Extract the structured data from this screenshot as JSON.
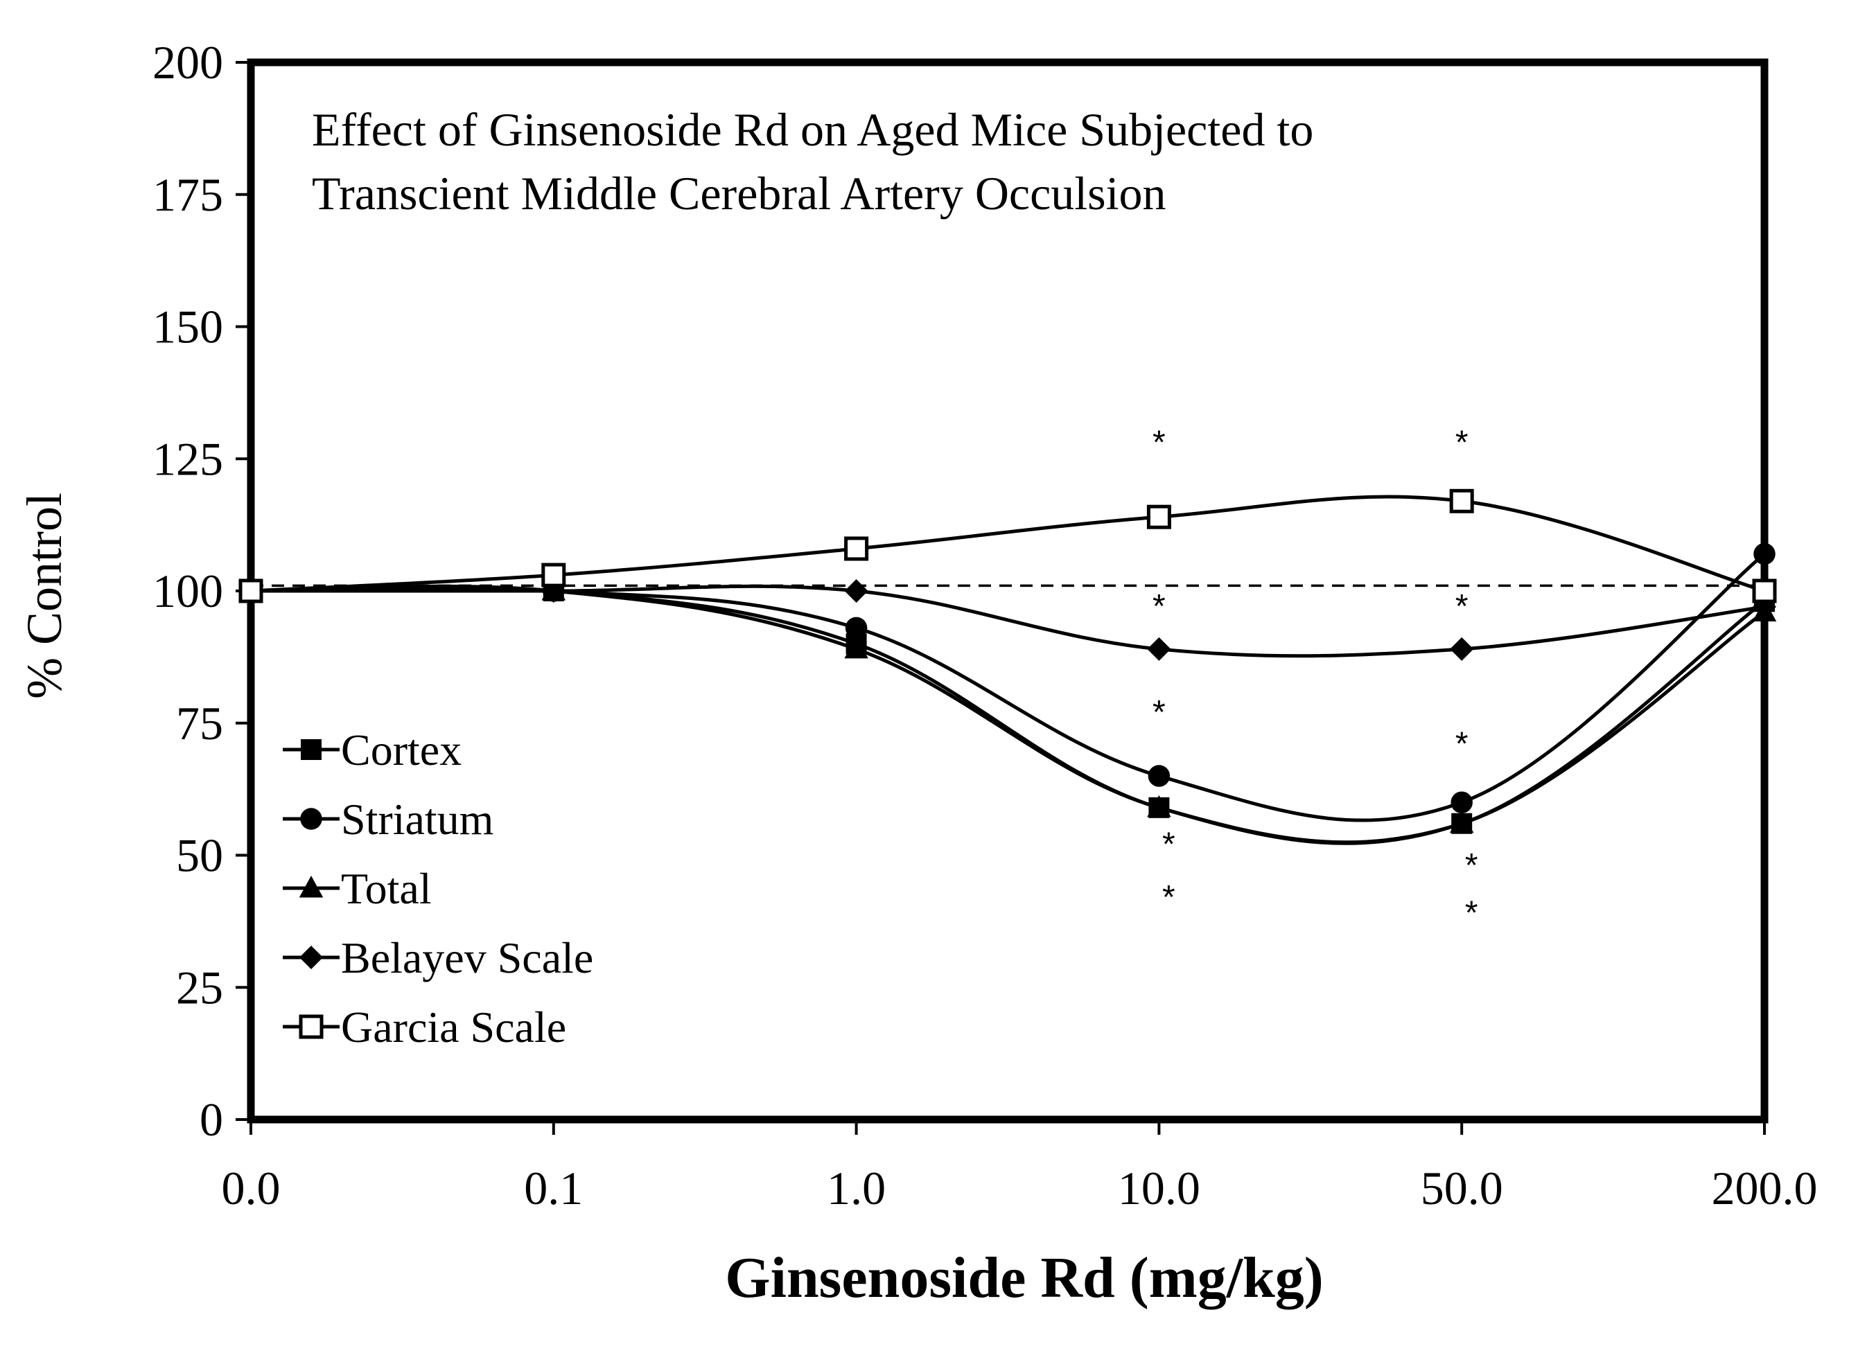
{
  "chart_data": {
    "type": "line",
    "title_lines": [
      "Effect of Ginsenoside Rd on Aged Mice Subjected to",
      "Transcient Middle Cerebral Artery Occulsion"
    ],
    "xlabel": "Ginsenoside Rd (mg/kg)",
    "ylabel": "% Control",
    "categories": [
      "0.0",
      "0.1",
      "1.0",
      "10.0",
      "50.0",
      "200.0"
    ],
    "ylim": [
      0,
      200
    ],
    "yticks": [
      0,
      25,
      50,
      75,
      100,
      125,
      150,
      175,
      200
    ],
    "reference_line": 101,
    "legend_position": "left",
    "series": [
      {
        "name": "Cortex",
        "marker": "square-filled",
        "values": [
          100,
          100,
          90,
          59,
          56,
          98
        ]
      },
      {
        "name": "Striatum",
        "marker": "circle-filled",
        "values": [
          100,
          100,
          93,
          65,
          60,
          107
        ]
      },
      {
        "name": "Total",
        "marker": "triangle-filled",
        "values": [
          100,
          100,
          89,
          59,
          56,
          96
        ]
      },
      {
        "name": "Belayev Scale",
        "marker": "diamond-filled",
        "values": [
          100,
          100,
          100,
          89,
          89,
          97
        ]
      },
      {
        "name": "Garcia Scale",
        "marker": "square-open",
        "values": [
          100,
          103,
          108,
          114,
          117,
          100
        ]
      }
    ],
    "annotations": [
      {
        "text": "*",
        "x": "10.0",
        "y": 126
      },
      {
        "text": "*",
        "x": "50.0",
        "y": 126
      },
      {
        "text": "*",
        "x": "10.0",
        "y": 95
      },
      {
        "text": "*",
        "x": "50.0",
        "y": 95
      },
      {
        "text": "*",
        "x": "10.0",
        "y": 75
      },
      {
        "text": "*",
        "x": "50.0",
        "y": 69
      },
      {
        "text": "*",
        "x": "10.0",
        "y": 50
      },
      {
        "text": "*",
        "x": "10.0",
        "y": 40
      },
      {
        "text": "*",
        "x": "50.0",
        "y": 46
      },
      {
        "text": "*",
        "x": "50.0",
        "y": 37
      }
    ]
  }
}
